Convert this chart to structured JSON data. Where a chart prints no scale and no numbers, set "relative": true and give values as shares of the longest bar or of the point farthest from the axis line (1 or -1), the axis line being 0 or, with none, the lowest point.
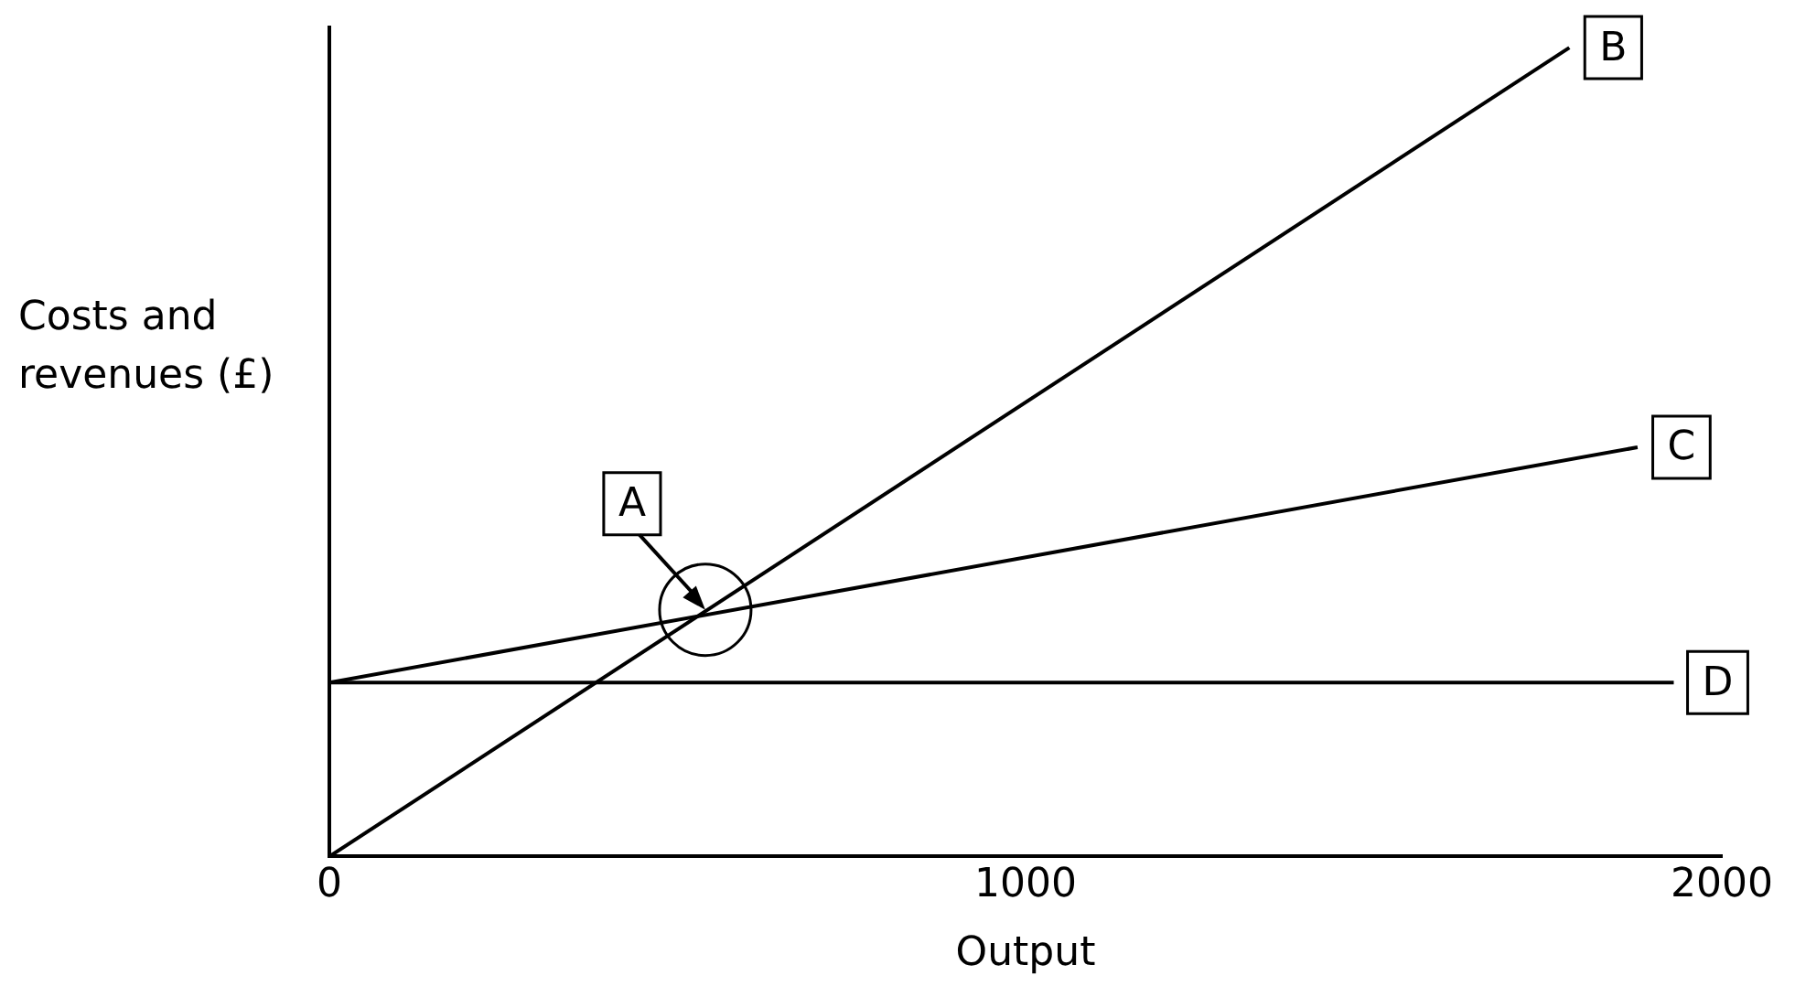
{
  "chart_data": {
    "type": "line",
    "relative": true,
    "xlabel": "Output",
    "ylabel": "Costs and revenues (£)",
    "xlim": [
      0,
      2000
    ],
    "xticks": [
      0,
      1000,
      2000
    ],
    "grid": false,
    "legend": false,
    "marker": "none",
    "line_style": "solid",
    "annotations": [
      {
        "text": "A",
        "x": 540,
        "y": 0.305
      }
    ],
    "series": [
      {
        "name": "B",
        "color": "#000000",
        "x": [
          0,
          1781
        ],
        "values": [
          0,
          1
        ]
      },
      {
        "name": "C",
        "color": "#000000",
        "x": [
          0,
          1879
        ],
        "values": [
          0.215,
          0.506
        ]
      },
      {
        "name": "D",
        "color": "#000000",
        "x": [
          0,
          1931
        ],
        "values": [
          0.215,
          0.215
        ]
      }
    ]
  }
}
